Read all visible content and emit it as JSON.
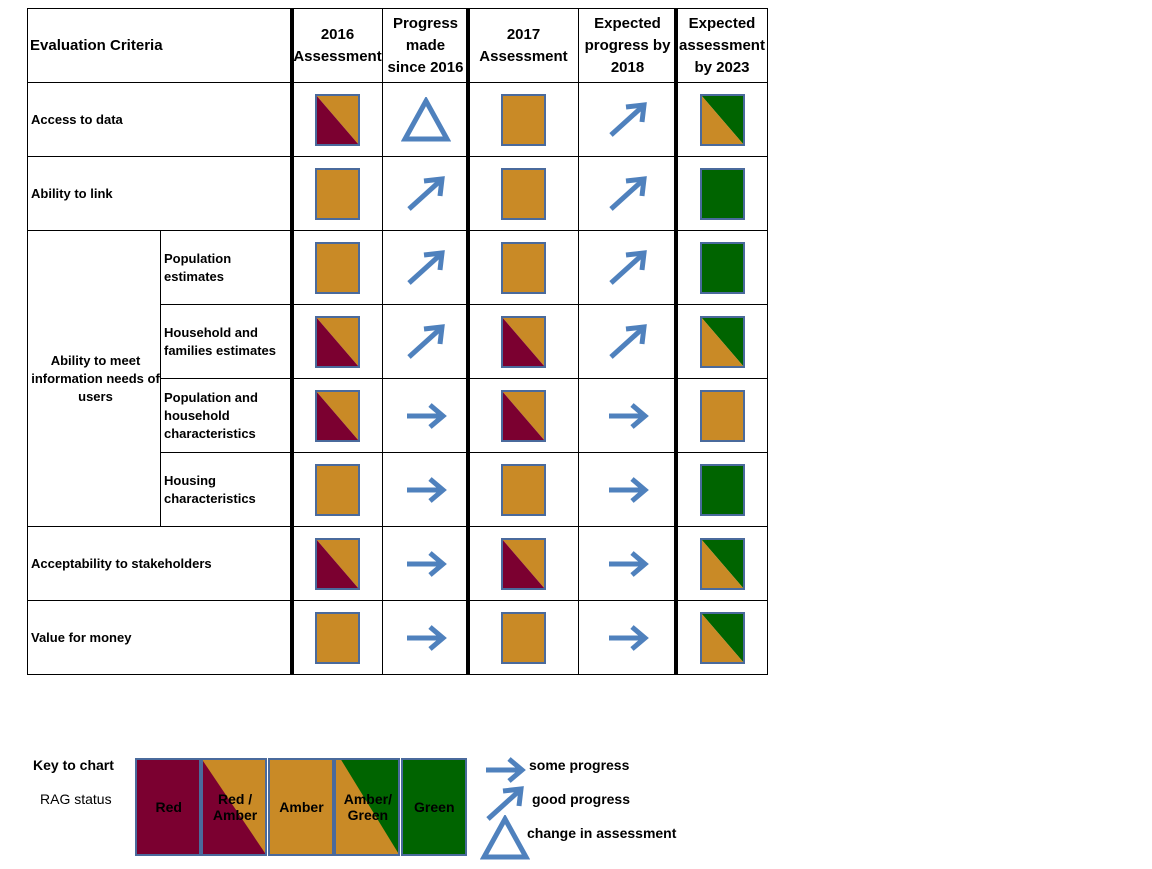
{
  "header": {
    "criteria": "Evaluation Criteria",
    "columns": [
      "2016 Assessment",
      "Progress made since 2016",
      "2017 Assessment",
      "Expected progress by 2018",
      "Expected assessment by 2023"
    ]
  },
  "rows": [
    {
      "label": "Access to data",
      "cells": [
        "red-amber",
        "change",
        "amber",
        "up",
        "amber-green"
      ]
    },
    {
      "label": "Ability to link",
      "cells": [
        "amber",
        "up",
        "amber",
        "up",
        "green"
      ]
    },
    {
      "group": "Ability to meet information needs of users",
      "items": [
        {
          "label": "Population estimates",
          "cells": [
            "amber",
            "up",
            "amber",
            "up",
            "green"
          ]
        },
        {
          "label": "Household and families estimates",
          "cells": [
            "red-amber",
            "up",
            "red-amber",
            "up",
            "amber-green"
          ]
        },
        {
          "label": "Population and household characteristics",
          "cells": [
            "red-amber",
            "right",
            "red-amber",
            "right",
            "amber"
          ]
        },
        {
          "label": "Housing characteristics",
          "cells": [
            "amber",
            "right",
            "amber",
            "right",
            "green"
          ]
        }
      ]
    },
    {
      "label": "Acceptability to stakeholders",
      "cells": [
        "red-amber",
        "right",
        "red-amber",
        "right",
        "amber-green"
      ]
    },
    {
      "label": "Value for money",
      "cells": [
        "amber",
        "right",
        "amber",
        "right",
        "amber-green"
      ]
    }
  ],
  "key": {
    "title": "Key to chart",
    "rag_label": "RAG status",
    "rag": [
      {
        "label": "Red",
        "status": "red"
      },
      {
        "label": "Red / Amber",
        "status": "red-amber"
      },
      {
        "label": "Amber",
        "status": "amber"
      },
      {
        "label": "Amber/ Green",
        "status": "amber-green"
      },
      {
        "label": "Green",
        "status": "green"
      }
    ],
    "progress": [
      {
        "label": "some progress",
        "icon": "right"
      },
      {
        "label": "good progress",
        "icon": "up"
      },
      {
        "label": "change in assessment",
        "icon": "change"
      }
    ]
  },
  "colors": {
    "red": "#7b0030",
    "amber": "#c98a26",
    "green": "#006400",
    "border": "#4a6a9c",
    "arrow": "#4f81bd"
  }
}
